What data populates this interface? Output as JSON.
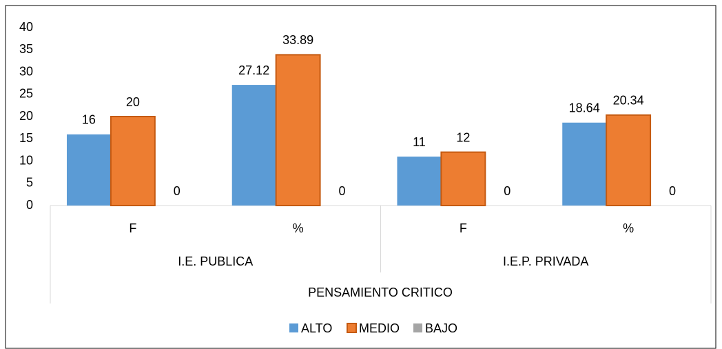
{
  "chart_data": {
    "type": "bar",
    "category_super_group": "PENSAMIENTO CRITICO",
    "groups": [
      {
        "name": "I.E. PUBLICA",
        "categories": [
          "F",
          "%"
        ]
      },
      {
        "name": "I.E.P. PRIVADA",
        "categories": [
          "F",
          "%"
        ]
      }
    ],
    "series": [
      {
        "name": "ALTO",
        "color": "#5b9bd5",
        "values": [
          16,
          27.12,
          11,
          18.64
        ]
      },
      {
        "name": "MEDIO",
        "color": "#ed7d31",
        "values": [
          20,
          33.89,
          12,
          20.34
        ]
      },
      {
        "name": "BAJO",
        "color": "#a5a5a5",
        "values": [
          0,
          0,
          0,
          0
        ]
      }
    ],
    "ylim": [
      0,
      40
    ],
    "yticks": [
      0,
      5,
      10,
      15,
      20,
      25,
      30,
      35,
      40
    ],
    "grid": false,
    "data_labels": true,
    "legend": "bottom"
  }
}
